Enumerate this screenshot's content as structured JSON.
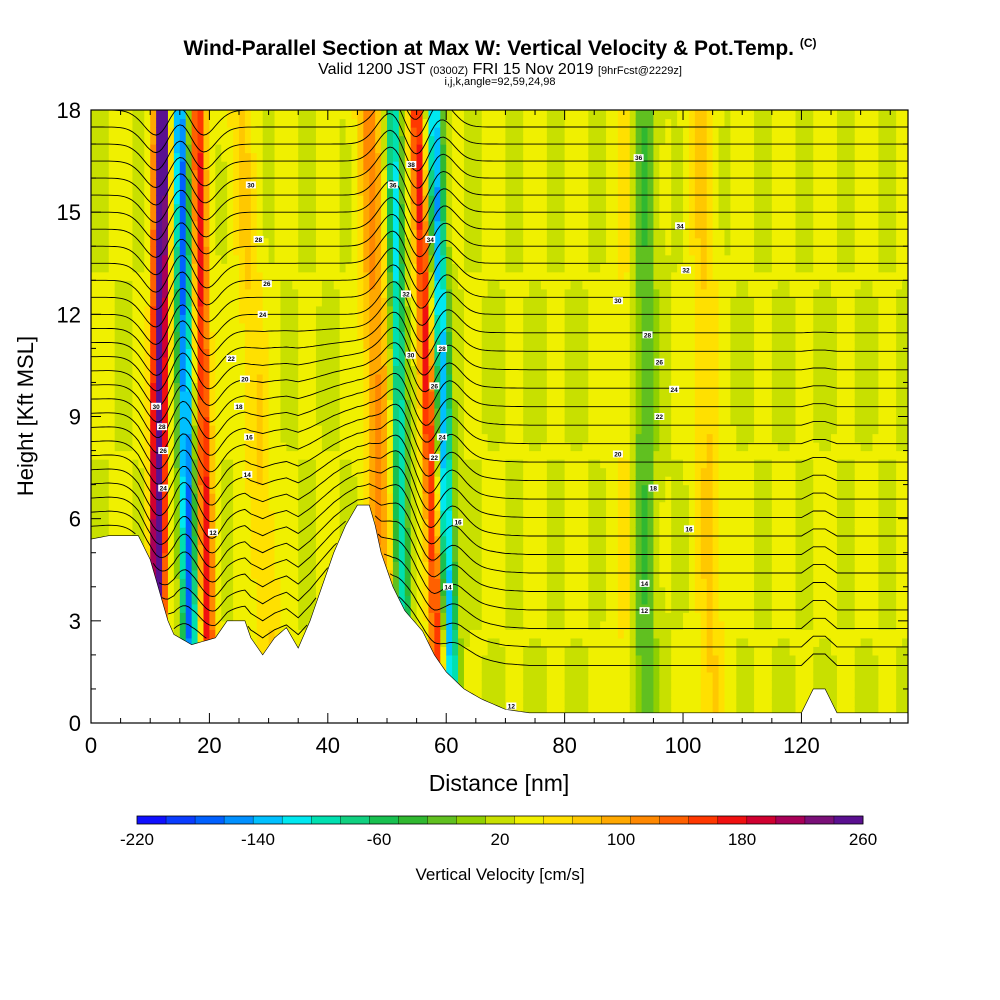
{
  "figure": {
    "title_main": "Wind-Parallel Section at Max W: Vertical Velocity & Pot.Temp.",
    "title_copyright": "(C)",
    "subtitle_a": "Valid 1200 JST",
    "subtitle_b": "(0300Z)",
    "subtitle_c": "FRI 15 Nov 2019",
    "subtitle_d": "[9hrFcst@2229z]",
    "subtitle_line2": "i,j,k,angle=92,59,24,98"
  },
  "chart_data": {
    "type": "heatmap",
    "xlabel": "Distance [nm]",
    "ylabel": "Height [Kft MSL]",
    "xlim": [
      0,
      138
    ],
    "ylim": [
      0,
      18
    ],
    "xticks": [
      0,
      20,
      40,
      60,
      80,
      100,
      120
    ],
    "yticks": [
      0,
      3,
      6,
      9,
      12,
      15,
      18
    ],
    "xtick_labels": [
      "0",
      "20",
      "40",
      "60",
      "80",
      "100",
      "120"
    ],
    "ytick_labels": [
      "0",
      "3",
      "6",
      "9",
      "12",
      "15",
      "18"
    ],
    "colorbar": {
      "label": "Vertical Velocity [cm/s]",
      "min": -220,
      "max": 260,
      "tick_values": [
        -220,
        -140,
        -60,
        20,
        100,
        180,
        260
      ],
      "tick_labels": [
        "-220",
        "-140",
        "-60",
        "20",
        "100",
        "180",
        "260"
      ],
      "colors": [
        "#1010ff",
        "#0a3cff",
        "#0060ff",
        "#0090ff",
        "#00c0ff",
        "#00e8f0",
        "#00e0b0",
        "#10d080",
        "#18c050",
        "#30b830",
        "#60c020",
        "#90d000",
        "#c8e000",
        "#f0f000",
        "#ffe000",
        "#ffc800",
        "#ffa800",
        "#ff8800",
        "#ff6000",
        "#ff3800",
        "#f01010",
        "#d00030",
        "#a80058",
        "#7a1078",
        "#5a1090"
      ]
    },
    "vertical_velocity_features": [
      {
        "kind": "updraft",
        "x_base": 11,
        "x_top": 12,
        "peak_cm_s": 260
      },
      {
        "kind": "downdraft",
        "x_base": 17,
        "x_top": 15,
        "peak_cm_s": -200
      },
      {
        "kind": "updraft",
        "x_base": 20,
        "x_top": 18,
        "peak_cm_s": 140
      },
      {
        "kind": "updraft",
        "x_base": 31,
        "x_top": 25,
        "peak_cm_s": 40
      },
      {
        "kind": "updraft",
        "x_base": 50,
        "x_top": 47,
        "peak_cm_s": 80
      },
      {
        "kind": "downdraft",
        "x_base": 53,
        "x_top": 51,
        "peak_cm_s": -140
      },
      {
        "kind": "updraft",
        "x_base": 59,
        "x_top": 55,
        "peak_cm_s": 140
      },
      {
        "kind": "downdraft",
        "x_base": 61,
        "x_top": 58,
        "peak_cm_s": -170
      },
      {
        "kind": "updraft",
        "x_base": 91,
        "x_top": 91,
        "peak_cm_s": 40
      },
      {
        "kind": "updraft",
        "x_base": 105,
        "x_top": 103,
        "peak_cm_s": 40
      },
      {
        "kind": "downdraft",
        "x_base": 93,
        "x_top": 93,
        "peak_cm_s": -70
      }
    ],
    "terrain_kft": [
      [
        0,
        5.4
      ],
      [
        3,
        5.5
      ],
      [
        8,
        5.5
      ],
      [
        10,
        4.8
      ],
      [
        12,
        3.6
      ],
      [
        13,
        3.0
      ],
      [
        14,
        2.6
      ],
      [
        17,
        2.3
      ],
      [
        21,
        2.5
      ],
      [
        23,
        3.0
      ],
      [
        26,
        3.0
      ],
      [
        27,
        2.5
      ],
      [
        29,
        2.0
      ],
      [
        31,
        2.5
      ],
      [
        33,
        2.8
      ],
      [
        35,
        2.2
      ],
      [
        37,
        3.0
      ],
      [
        39,
        4.0
      ],
      [
        41,
        5.0
      ],
      [
        43,
        5.8
      ],
      [
        45,
        6.4
      ],
      [
        47,
        6.4
      ],
      [
        48,
        5.8
      ],
      [
        49,
        5.0
      ],
      [
        51,
        4.0
      ],
      [
        53,
        3.3
      ],
      [
        56,
        2.7
      ],
      [
        58,
        2.0
      ],
      [
        60,
        1.5
      ],
      [
        63,
        1.0
      ],
      [
        66,
        0.7
      ],
      [
        70,
        0.4
      ],
      [
        74,
        0.3
      ],
      [
        120,
        0.3
      ],
      [
        122,
        1.0
      ],
      [
        124,
        1.0
      ],
      [
        126,
        0.3
      ],
      [
        138,
        0.3
      ]
    ],
    "theta_contour_labels": [
      {
        "x": 11.0,
        "y": 9.3,
        "text": "30"
      },
      {
        "x": 12.0,
        "y": 8.7,
        "text": "28"
      },
      {
        "x": 12.2,
        "y": 8.0,
        "text": "26"
      },
      {
        "x": 12.2,
        "y": 6.9,
        "text": "24"
      },
      {
        "x": 20.6,
        "y": 5.6,
        "text": "12"
      },
      {
        "x": 26.4,
        "y": 7.3,
        "text": "14"
      },
      {
        "x": 26.7,
        "y": 8.4,
        "text": "16"
      },
      {
        "x": 25.0,
        "y": 9.3,
        "text": "18"
      },
      {
        "x": 26.0,
        "y": 10.1,
        "text": "20"
      },
      {
        "x": 23.7,
        "y": 10.7,
        "text": "22"
      },
      {
        "x": 29.0,
        "y": 12.0,
        "text": "24"
      },
      {
        "x": 29.7,
        "y": 12.9,
        "text": "26"
      },
      {
        "x": 28.3,
        "y": 14.2,
        "text": "28"
      },
      {
        "x": 27.0,
        "y": 15.8,
        "text": "30"
      },
      {
        "x": 54.1,
        "y": 16.4,
        "text": "38"
      },
      {
        "x": 51.0,
        "y": 15.8,
        "text": "36"
      },
      {
        "x": 57.3,
        "y": 14.2,
        "text": "34"
      },
      {
        "x": 53.2,
        "y": 12.6,
        "text": "32"
      },
      {
        "x": 54.0,
        "y": 10.8,
        "text": "30"
      },
      {
        "x": 59.3,
        "y": 11.0,
        "text": "28"
      },
      {
        "x": 58.0,
        "y": 9.9,
        "text": "26"
      },
      {
        "x": 59.3,
        "y": 8.4,
        "text": "24"
      },
      {
        "x": 58.0,
        "y": 7.8,
        "text": "22"
      },
      {
        "x": 62.0,
        "y": 5.9,
        "text": "16"
      },
      {
        "x": 60.3,
        "y": 4.0,
        "text": "14"
      },
      {
        "x": 92.5,
        "y": 16.6,
        "text": "36"
      },
      {
        "x": 99.5,
        "y": 14.6,
        "text": "34"
      },
      {
        "x": 100.5,
        "y": 13.3,
        "text": "32"
      },
      {
        "x": 89.0,
        "y": 12.4,
        "text": "30"
      },
      {
        "x": 94.0,
        "y": 11.4,
        "text": "28"
      },
      {
        "x": 96.0,
        "y": 10.6,
        "text": "26"
      },
      {
        "x": 98.5,
        "y": 9.8,
        "text": "24"
      },
      {
        "x": 96.0,
        "y": 9.0,
        "text": "22"
      },
      {
        "x": 89.0,
        "y": 7.9,
        "text": "20"
      },
      {
        "x": 95.0,
        "y": 6.9,
        "text": "18"
      },
      {
        "x": 101.0,
        "y": 5.7,
        "text": "16"
      },
      {
        "x": 93.5,
        "y": 4.1,
        "text": "14"
      },
      {
        "x": 93.5,
        "y": 3.3,
        "text": "12"
      },
      {
        "x": 71.0,
        "y": 0.5,
        "text": "12"
      }
    ]
  }
}
